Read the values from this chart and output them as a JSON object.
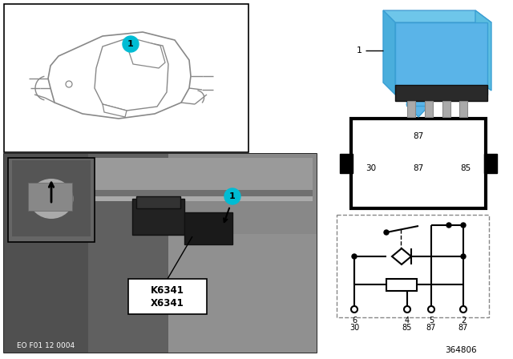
{
  "bg_color": "#ffffff",
  "teal_circle": "#00bcd4",
  "label_K": "K6341",
  "label_X": "X6341",
  "eo_label": "EO F01 12 0004",
  "part_number": "364806",
  "relay_blue": "#5ab4e8",
  "relay_blue2": "#4a9fd4",
  "relay_dark": "#2a2a2a",
  "relay_pin_color": "#b0b0b0",
  "car_line": "#888888",
  "photo_bg_dark": "#6a6a6a",
  "photo_bg_mid": "#888888",
  "inset_bg": "#777777",
  "inset_dark": "#444444"
}
